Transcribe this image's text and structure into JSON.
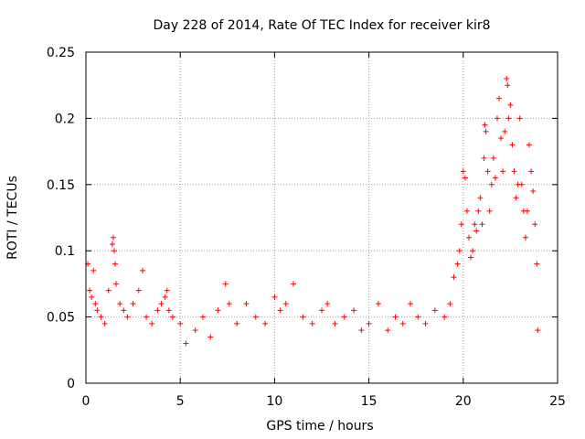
{
  "chart_data": {
    "type": "scatter",
    "title": "Day 228 of 2014, Rate Of TEC Index for receiver kir8",
    "xlabel": "GPS time / hours",
    "ylabel": "ROTI / TECUs",
    "xlim": [
      0,
      25
    ],
    "ylim": [
      0,
      0.25
    ],
    "x_ticks": [
      0,
      5,
      10,
      15,
      20,
      25
    ],
    "x_tick_labels": [
      "0",
      "5",
      "10",
      "15",
      "20",
      "25"
    ],
    "y_ticks": [
      0,
      0.05,
      0.1,
      0.15,
      0.2,
      0.25
    ],
    "y_tick_labels": [
      "0",
      "0.05",
      "0.1",
      "0.15",
      "0.2",
      "0.25"
    ],
    "grid": true,
    "marker": "plus",
    "marker_color": "#ff0000",
    "grid_color": "#a0a0a0",
    "axis_color": "#000000",
    "series": [
      {
        "name": "ROTI",
        "points": [
          [
            0.1,
            0.09
          ],
          [
            0.2,
            0.07
          ],
          [
            0.3,
            0.065
          ],
          [
            0.4,
            0.085
          ],
          [
            0.5,
            0.06
          ],
          [
            0.6,
            0.055
          ],
          [
            0.8,
            0.05
          ],
          [
            1.0,
            0.045
          ],
          [
            1.2,
            0.07
          ],
          [
            1.4,
            0.105
          ],
          [
            1.45,
            0.11
          ],
          [
            1.5,
            0.1
          ],
          [
            1.55,
            0.09
          ],
          [
            1.6,
            0.075
          ],
          [
            1.8,
            0.06
          ],
          [
            2.0,
            0.055
          ],
          [
            2.2,
            0.05
          ],
          [
            2.5,
            0.06
          ],
          [
            2.8,
            0.07
          ],
          [
            3.0,
            0.085
          ],
          [
            3.2,
            0.05
          ],
          [
            3.5,
            0.045
          ],
          [
            3.8,
            0.055
          ],
          [
            4.0,
            0.06
          ],
          [
            4.2,
            0.065
          ],
          [
            4.3,
            0.07
          ],
          [
            4.4,
            0.055
          ],
          [
            4.6,
            0.05
          ],
          [
            5.0,
            0.045
          ],
          [
            5.3,
            0.03
          ],
          [
            5.8,
            0.04
          ],
          [
            6.2,
            0.05
          ],
          [
            6.6,
            0.035
          ],
          [
            7.0,
            0.055
          ],
          [
            7.4,
            0.075
          ],
          [
            7.6,
            0.06
          ],
          [
            8.0,
            0.045
          ],
          [
            8.5,
            0.06
          ],
          [
            9.0,
            0.05
          ],
          [
            9.5,
            0.045
          ],
          [
            10.0,
            0.065
          ],
          [
            10.3,
            0.055
          ],
          [
            10.6,
            0.06
          ],
          [
            11.0,
            0.075
          ],
          [
            11.5,
            0.05
          ],
          [
            12.0,
            0.045
          ],
          [
            12.5,
            0.055
          ],
          [
            12.8,
            0.06
          ],
          [
            13.2,
            0.045
          ],
          [
            13.7,
            0.05
          ],
          [
            14.2,
            0.055
          ],
          [
            14.6,
            0.04
          ],
          [
            15.0,
            0.045
          ],
          [
            15.5,
            0.06
          ],
          [
            16.0,
            0.04
          ],
          [
            16.4,
            0.05
          ],
          [
            16.8,
            0.045
          ],
          [
            17.2,
            0.06
          ],
          [
            17.6,
            0.05
          ],
          [
            18.0,
            0.045
          ],
          [
            18.5,
            0.055
          ],
          [
            19.0,
            0.05
          ],
          [
            19.3,
            0.06
          ],
          [
            19.5,
            0.08
          ],
          [
            19.7,
            0.09
          ],
          [
            19.8,
            0.1
          ],
          [
            19.9,
            0.12
          ],
          [
            20.0,
            0.16
          ],
          [
            20.1,
            0.155
          ],
          [
            20.2,
            0.13
          ],
          [
            20.3,
            0.11
          ],
          [
            20.4,
            0.095
          ],
          [
            20.5,
            0.1
          ],
          [
            20.6,
            0.12
          ],
          [
            20.7,
            0.115
          ],
          [
            20.8,
            0.13
          ],
          [
            20.9,
            0.14
          ],
          [
            21.0,
            0.12
          ],
          [
            21.1,
            0.17
          ],
          [
            21.15,
            0.195
          ],
          [
            21.2,
            0.19
          ],
          [
            21.3,
            0.16
          ],
          [
            21.4,
            0.13
          ],
          [
            21.5,
            0.15
          ],
          [
            21.6,
            0.17
          ],
          [
            21.7,
            0.155
          ],
          [
            21.8,
            0.2
          ],
          [
            21.9,
            0.215
          ],
          [
            22.0,
            0.185
          ],
          [
            22.1,
            0.16
          ],
          [
            22.2,
            0.19
          ],
          [
            22.3,
            0.23
          ],
          [
            22.35,
            0.225
          ],
          [
            22.4,
            0.2
          ],
          [
            22.5,
            0.21
          ],
          [
            22.6,
            0.18
          ],
          [
            22.7,
            0.16
          ],
          [
            22.8,
            0.14
          ],
          [
            22.9,
            0.15
          ],
          [
            23.0,
            0.2
          ],
          [
            23.1,
            0.15
          ],
          [
            23.2,
            0.13
          ],
          [
            23.3,
            0.11
          ],
          [
            23.4,
            0.13
          ],
          [
            23.5,
            0.18
          ],
          [
            23.6,
            0.16
          ],
          [
            23.7,
            0.145
          ],
          [
            23.8,
            0.12
          ],
          [
            23.9,
            0.09
          ],
          [
            23.95,
            0.04
          ]
        ]
      }
    ]
  }
}
